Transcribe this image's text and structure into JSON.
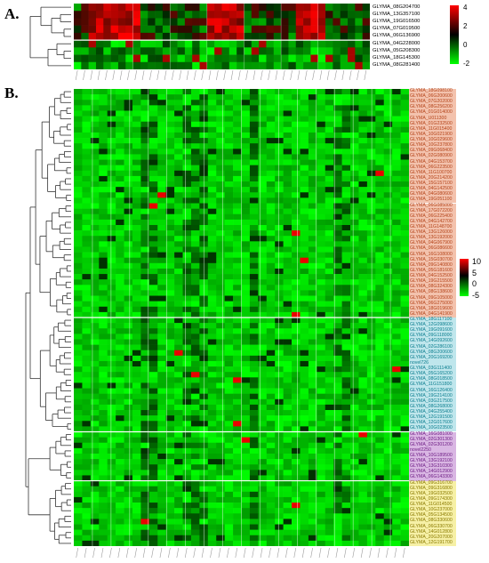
{
  "chart_data": [
    {
      "type": "heatmap",
      "panel_label": "A.",
      "genes": [
        "GLYMA_08G204700",
        "GLYMA_13G357100",
        "GLYMA_19G016500",
        "GLYMA_07G019500",
        "GLYMA_06G136900",
        "GLYMA_04G228000",
        "GLYMA_05G208300",
        "GLYMA_18G145300",
        "GLYMA_08G281400"
      ],
      "colorbar": {
        "ticks": [
          4,
          2,
          0,
          -2
        ],
        "colors": [
          "#ff0000",
          "#000000",
          "#00ff00"
        ],
        "range": [
          -2,
          4
        ]
      },
      "columns": 40,
      "blocks": [
        5
      ],
      "high_columns": [
        2,
        3,
        4,
        5,
        6,
        7,
        8,
        18,
        19,
        20,
        21,
        22,
        30,
        31,
        32,
        33
      ]
    },
    {
      "type": "heatmap",
      "panel_label": "B.",
      "colorbar": {
        "ticks": [
          10,
          5,
          0,
          -5
        ],
        "colors": [
          "#ff0000",
          "#000000",
          "#00ff00"
        ],
        "range": [
          -5,
          10
        ]
      },
      "columns": 40,
      "column_groups": 18,
      "clusters": [
        {
          "color": "#f3c2ad",
          "text_color": "#b4441a",
          "genes": [
            "GLYMA_18G098100",
            "GLYMA_06G200600",
            "GLYMA_07G202000",
            "GLYMA_08G256200",
            "GLYMA_01G014000",
            "GLYMA_U011300",
            "GLYMA_01G232500",
            "GLYMA_11G015400",
            "GLYMA_10G021900",
            "GLYMA_10G029600",
            "GLYMA_10G237800",
            "GLYMA_09G068400",
            "GLYMA_02G080900",
            "GLYMA_04G153700",
            "GLYMA_06G223500",
            "GLYMA_11G100700",
            "GLYMA_20G214200",
            "GLYMA_15G157100",
            "GLYMA_04G142500",
            "GLYMA_04G080600",
            "GLYMA_19G051100",
            "GLYMA_06G085000",
            "GLYMA_17G072200",
            "GLYMA_06G225400",
            "GLYMA_04G142700",
            "GLYMA_11G148700",
            "GLYMA_13G126000",
            "GLYMA_13G192000",
            "GLYMA_04G067900",
            "GLYMA_06G086600",
            "GLYMA_16G108000",
            "GLYMA_15G030700",
            "GLYMA_09G140800",
            "GLYMA_05G181600",
            "GLYMA_04G152500",
            "GLYMA_19G215500",
            "GLYMA_08G324300",
            "GLYMA_08G138600",
            "GLYMA_09G105000",
            "GLYMA_06G275000",
            "GLYMA_18G019600",
            "GLYMA_04G141900"
          ]
        },
        {
          "color": "#bfe6ec",
          "text_color": "#0d7f8f",
          "genes": [
            "GLYMA_18G117100",
            "GLYMA_12G098600",
            "GLYMA_19G091600",
            "GLYMA_09G118000",
            "GLYMA_14G092600",
            "GLYMA_02G286100",
            "GLYMA_08G200600",
            "GLYMA_20G169200",
            "novel726",
            "GLYMA_03G111400",
            "GLYMA_05G165200",
            "GLYMA_08G018500",
            "GLYMA_11G151800",
            "GLYMA_16G126400",
            "GLYMA_19G214100",
            "GLYMA_03G217500",
            "GLYMA_08G268000",
            "GLYMA_04G255400",
            "GLYMA_12G191500",
            "GLYMA_12G017600",
            "GLYMA_10G023500"
          ]
        },
        {
          "color": "#d9b6e3",
          "text_color": "#6f1f86",
          "genes": [
            "GLYMA_16G081000",
            "GLYMA_02G301300",
            "GLYMA_02G301200",
            "novel2250",
            "GLYMA_10G189500",
            "GLYMA_13G192100",
            "GLYMA_13G310300",
            "GLYMA_14G012900",
            "GLYMA_06G143300"
          ]
        },
        {
          "color": "#f6f0a6",
          "text_color": "#8a7a00",
          "genes": [
            "GLYMA_09G316700",
            "GLYMA_09G316800",
            "GLYMA_19G032500",
            "GLYMA_09G174300",
            "GLYMA_11G014500",
            "GLYMA_10G237000",
            "GLYMA_05G134500",
            "GLYMA_08G330600",
            "GLYMA_06G330700",
            "GLYMA_14G012800",
            "GLYMA_20G207000",
            "GLYMA_12G191700"
          ]
        }
      ]
    }
  ]
}
